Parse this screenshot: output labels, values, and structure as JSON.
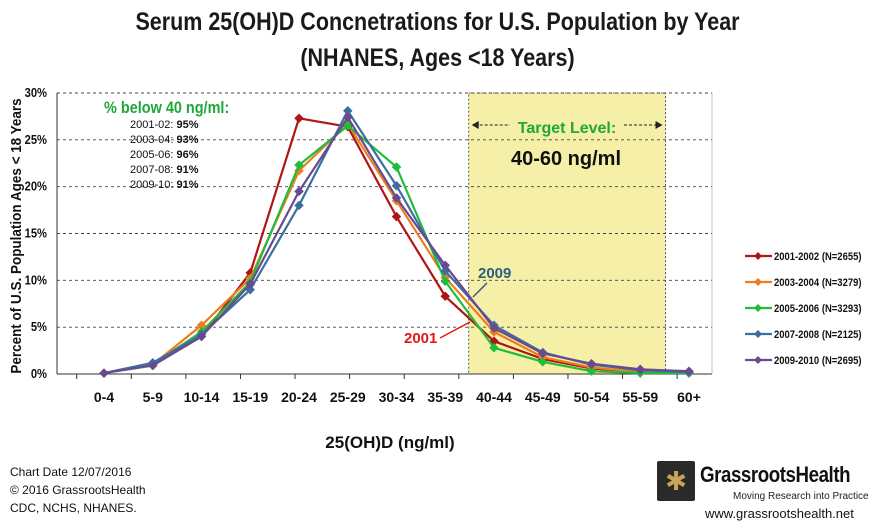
{
  "title_line1": "Serum 25(OH)D Concnetrations for U.S. Population by Year",
  "title_line2": "(NHANES, Ages <18 Years)",
  "chart_data": {
    "type": "line",
    "xlabel": "25(OH)D (ng/ml)",
    "ylabel": "Percent of U.S. Population Ages < 18 Years",
    "categories": [
      "0-4",
      "5-9",
      "10-14",
      "15-19",
      "20-24",
      "25-29",
      "30-34",
      "35-39",
      "40-44",
      "45-49",
      "50-54",
      "55-59",
      "60+"
    ],
    "y_ticks": [
      "0%",
      "5%",
      "10%",
      "15%",
      "20%",
      "25%",
      "30%"
    ],
    "ylim": [
      0,
      30
    ],
    "grid": "horizontal dashed",
    "series": [
      {
        "name": "2001-2002 (N=2655)",
        "color": "#b01515",
        "values": [
          0.1,
          1.0,
          4.0,
          10.8,
          27.3,
          26.4,
          16.8,
          8.3,
          3.5,
          1.6,
          0.6,
          0.2,
          0.1
        ]
      },
      {
        "name": "2003-2004 (N=3279)",
        "color": "#ee7d1c",
        "values": [
          0.1,
          1.0,
          5.2,
          10.2,
          21.7,
          26.7,
          18.5,
          10.3,
          4.5,
          1.8,
          0.7,
          0.2,
          0.1
        ]
      },
      {
        "name": "2005-2006 (N=3293)",
        "color": "#1fbd3a",
        "values": [
          0.1,
          1.0,
          4.5,
          9.8,
          22.3,
          26.5,
          22.1,
          9.9,
          2.8,
          1.3,
          0.3,
          0.1,
          0.1
        ]
      },
      {
        "name": "2007-2008 (N=2125)",
        "color": "#3c6fa0",
        "values": [
          0.1,
          1.2,
          4.2,
          9.0,
          18.0,
          28.1,
          20.1,
          11.0,
          5.2,
          2.3,
          1.0,
          0.4,
          0.2
        ]
      },
      {
        "name": "2009-2010 (N=2695)",
        "color": "#6a4a8e",
        "values": [
          0.1,
          0.9,
          4.0,
          9.6,
          19.5,
          27.4,
          18.8,
          11.6,
          4.9,
          2.2,
          1.1,
          0.5,
          0.3
        ]
      }
    ],
    "target_band": {
      "from_category": "40-44",
      "to_category": "55-59",
      "label": "Target Level:",
      "range_label": "40-60 ng/ml",
      "color": "#f5efa8"
    },
    "annotations": [
      {
        "text": "2001",
        "color": "#e01818",
        "series": "2001-2002 (N=2655)",
        "category": "40-44"
      },
      {
        "text": "2009",
        "color": "#2d5f83",
        "series": "2009-2010 (N=2695)",
        "category": "40-44"
      }
    ]
  },
  "pct_below": {
    "title": "% below 40 ng/ml:",
    "rows": [
      {
        "year": "2001-02:",
        "value": "95%"
      },
      {
        "year": "2003-04:",
        "value": "93%"
      },
      {
        "year": "2005-06:",
        "value": "96%"
      },
      {
        "year": "2007-08:",
        "value": "91%"
      },
      {
        "year": "2009-10:",
        "value": "91%"
      }
    ]
  },
  "footer": {
    "line1": "Chart Date 12/07/2016",
    "line2": "© 2016 GrassrootsHealth",
    "line3": "CDC, NCHS, NHANES."
  },
  "brand": {
    "name": "GrassrootsHealth",
    "tagline": "Moving Research into Practice",
    "url": "www.grassrootshealth.net"
  }
}
